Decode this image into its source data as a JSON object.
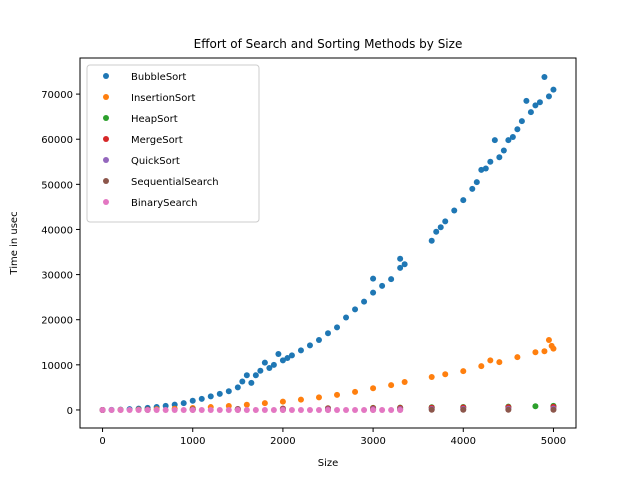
{
  "chart_data": {
    "type": "scatter",
    "title": "Effort of Search and Sorting Methods by Size",
    "xlabel": "Size",
    "ylabel": "Time in usec",
    "xlim": [
      -250,
      5250
    ],
    "ylim": [
      -4000,
      78000
    ],
    "xticks": [
      0,
      1000,
      2000,
      3000,
      4000,
      5000
    ],
    "yticks": [
      0,
      10000,
      20000,
      30000,
      40000,
      50000,
      60000,
      70000
    ],
    "grid": false,
    "legend_position": "top-left",
    "series": [
      {
        "name": "BubbleSort",
        "color": "#1f77b4",
        "points": [
          [
            0,
            0
          ],
          [
            100,
            20
          ],
          [
            200,
            80
          ],
          [
            300,
            170
          ],
          [
            400,
            300
          ],
          [
            500,
            460
          ],
          [
            600,
            660
          ],
          [
            700,
            900
          ],
          [
            800,
            1180
          ],
          [
            900,
            1500
          ],
          [
            1000,
            2050
          ],
          [
            1100,
            2450
          ],
          [
            1200,
            3000
          ],
          [
            1300,
            3550
          ],
          [
            1400,
            4150
          ],
          [
            1500,
            5000
          ],
          [
            1550,
            6300
          ],
          [
            1600,
            7700
          ],
          [
            1650,
            6000
          ],
          [
            1700,
            7700
          ],
          [
            1750,
            8700
          ],
          [
            1800,
            10500
          ],
          [
            1850,
            9300
          ],
          [
            1900,
            10000
          ],
          [
            1950,
            12400
          ],
          [
            2000,
            11000
          ],
          [
            2050,
            11500
          ],
          [
            2100,
            12100
          ],
          [
            2200,
            13200
          ],
          [
            2300,
            14300
          ],
          [
            2400,
            15500
          ],
          [
            2500,
            17000
          ],
          [
            2600,
            18300
          ],
          [
            2700,
            20500
          ],
          [
            2800,
            22300
          ],
          [
            2900,
            24000
          ],
          [
            3000,
            26000
          ],
          [
            3000,
            29100
          ],
          [
            3100,
            27500
          ],
          [
            3200,
            29000
          ],
          [
            3300,
            31500
          ],
          [
            3300,
            33500
          ],
          [
            3350,
            32300
          ],
          [
            3650,
            37500
          ],
          [
            3700,
            39500
          ],
          [
            3750,
            40500
          ],
          [
            3800,
            41800
          ],
          [
            3900,
            44200
          ],
          [
            4000,
            46500
          ],
          [
            4100,
            49000
          ],
          [
            4150,
            50500
          ],
          [
            4200,
            53200
          ],
          [
            4250,
            53500
          ],
          [
            4300,
            55000
          ],
          [
            4350,
            59800
          ],
          [
            4400,
            56000
          ],
          [
            4450,
            57500
          ],
          [
            4500,
            59800
          ],
          [
            4550,
            60500
          ],
          [
            4600,
            62200
          ],
          [
            4650,
            64000
          ],
          [
            4700,
            68500
          ],
          [
            4750,
            66000
          ],
          [
            4800,
            67500
          ],
          [
            4850,
            68200
          ],
          [
            4900,
            73800
          ],
          [
            4950,
            69500
          ],
          [
            5000,
            71000
          ]
        ]
      },
      {
        "name": "InsertionSort",
        "color": "#ff7f0e",
        "points": [
          [
            0,
            0
          ],
          [
            200,
            20
          ],
          [
            400,
            70
          ],
          [
            600,
            160
          ],
          [
            800,
            280
          ],
          [
            1000,
            430
          ],
          [
            1200,
            640
          ],
          [
            1400,
            880
          ],
          [
            1600,
            1150
          ],
          [
            1800,
            1500
          ],
          [
            2000,
            1850
          ],
          [
            2200,
            2300
          ],
          [
            2400,
            2800
          ],
          [
            2600,
            3350
          ],
          [
            2800,
            4000
          ],
          [
            3000,
            4800
          ],
          [
            3200,
            5500
          ],
          [
            3350,
            6200
          ],
          [
            3650,
            7300
          ],
          [
            3800,
            7900
          ],
          [
            4000,
            8600
          ],
          [
            4200,
            9700
          ],
          [
            4300,
            11000
          ],
          [
            4400,
            10600
          ],
          [
            4600,
            11700
          ],
          [
            4800,
            12800
          ],
          [
            4900,
            13000
          ],
          [
            4950,
            15500
          ],
          [
            4980,
            14200
          ],
          [
            5000,
            13600
          ]
        ]
      },
      {
        "name": "HeapSort",
        "color": "#2ca02c",
        "points": [
          [
            0,
            0
          ],
          [
            500,
            70
          ],
          [
            1000,
            150
          ],
          [
            1500,
            220
          ],
          [
            2000,
            300
          ],
          [
            2500,
            380
          ],
          [
            3000,
            460
          ],
          [
            3300,
            520
          ],
          [
            3650,
            590
          ],
          [
            4000,
            650
          ],
          [
            4500,
            750
          ],
          [
            4800,
            820
          ],
          [
            5000,
            900
          ]
        ]
      },
      {
        "name": "MergeSort",
        "color": "#d62728",
        "points": [
          [
            0,
            0
          ],
          [
            500,
            60
          ],
          [
            1000,
            130
          ],
          [
            1500,
            190
          ],
          [
            2000,
            260
          ],
          [
            2500,
            320
          ],
          [
            3000,
            390
          ],
          [
            3300,
            430
          ],
          [
            3650,
            480
          ],
          [
            4000,
            540
          ],
          [
            4500,
            610
          ],
          [
            5000,
            680
          ]
        ]
      },
      {
        "name": "QuickSort",
        "color": "#9467bd",
        "points": [
          [
            0,
            0
          ],
          [
            500,
            30
          ],
          [
            1000,
            60
          ],
          [
            1500,
            90
          ],
          [
            2000,
            120
          ],
          [
            2500,
            150
          ],
          [
            3000,
            180
          ],
          [
            3300,
            200
          ],
          [
            3650,
            220
          ],
          [
            4000,
            250
          ],
          [
            4500,
            280
          ],
          [
            5000,
            310
          ]
        ]
      },
      {
        "name": "SequentialSearch",
        "color": "#8c564b",
        "points": [
          [
            0,
            0
          ],
          [
            500,
            5
          ],
          [
            1000,
            10
          ],
          [
            1500,
            15
          ],
          [
            2000,
            20
          ],
          [
            2500,
            25
          ],
          [
            3000,
            30
          ],
          [
            3300,
            33
          ],
          [
            3650,
            36
          ],
          [
            4000,
            40
          ],
          [
            4500,
            45
          ],
          [
            5000,
            50
          ]
        ]
      },
      {
        "name": "BinarySearch",
        "color": "#e377c2",
        "points": [
          [
            0,
            0
          ],
          [
            100,
            0
          ],
          [
            200,
            0
          ],
          [
            300,
            0
          ],
          [
            400,
            0
          ],
          [
            500,
            0
          ],
          [
            600,
            0
          ],
          [
            700,
            0
          ],
          [
            800,
            0
          ],
          [
            900,
            0
          ],
          [
            1000,
            0
          ],
          [
            1100,
            0
          ],
          [
            1200,
            0
          ],
          [
            1300,
            0
          ],
          [
            1400,
            0
          ],
          [
            1500,
            0
          ],
          [
            1600,
            0
          ],
          [
            1700,
            0
          ],
          [
            1800,
            0
          ],
          [
            1900,
            0
          ],
          [
            2000,
            0
          ],
          [
            2100,
            0
          ],
          [
            2200,
            0
          ],
          [
            2300,
            0
          ],
          [
            2400,
            0
          ],
          [
            2500,
            0
          ],
          [
            2600,
            0
          ],
          [
            2700,
            0
          ],
          [
            2800,
            0
          ],
          [
            2900,
            0
          ],
          [
            3000,
            0
          ],
          [
            3100,
            0
          ],
          [
            3200,
            0
          ],
          [
            3300,
            0
          ]
        ]
      }
    ]
  }
}
